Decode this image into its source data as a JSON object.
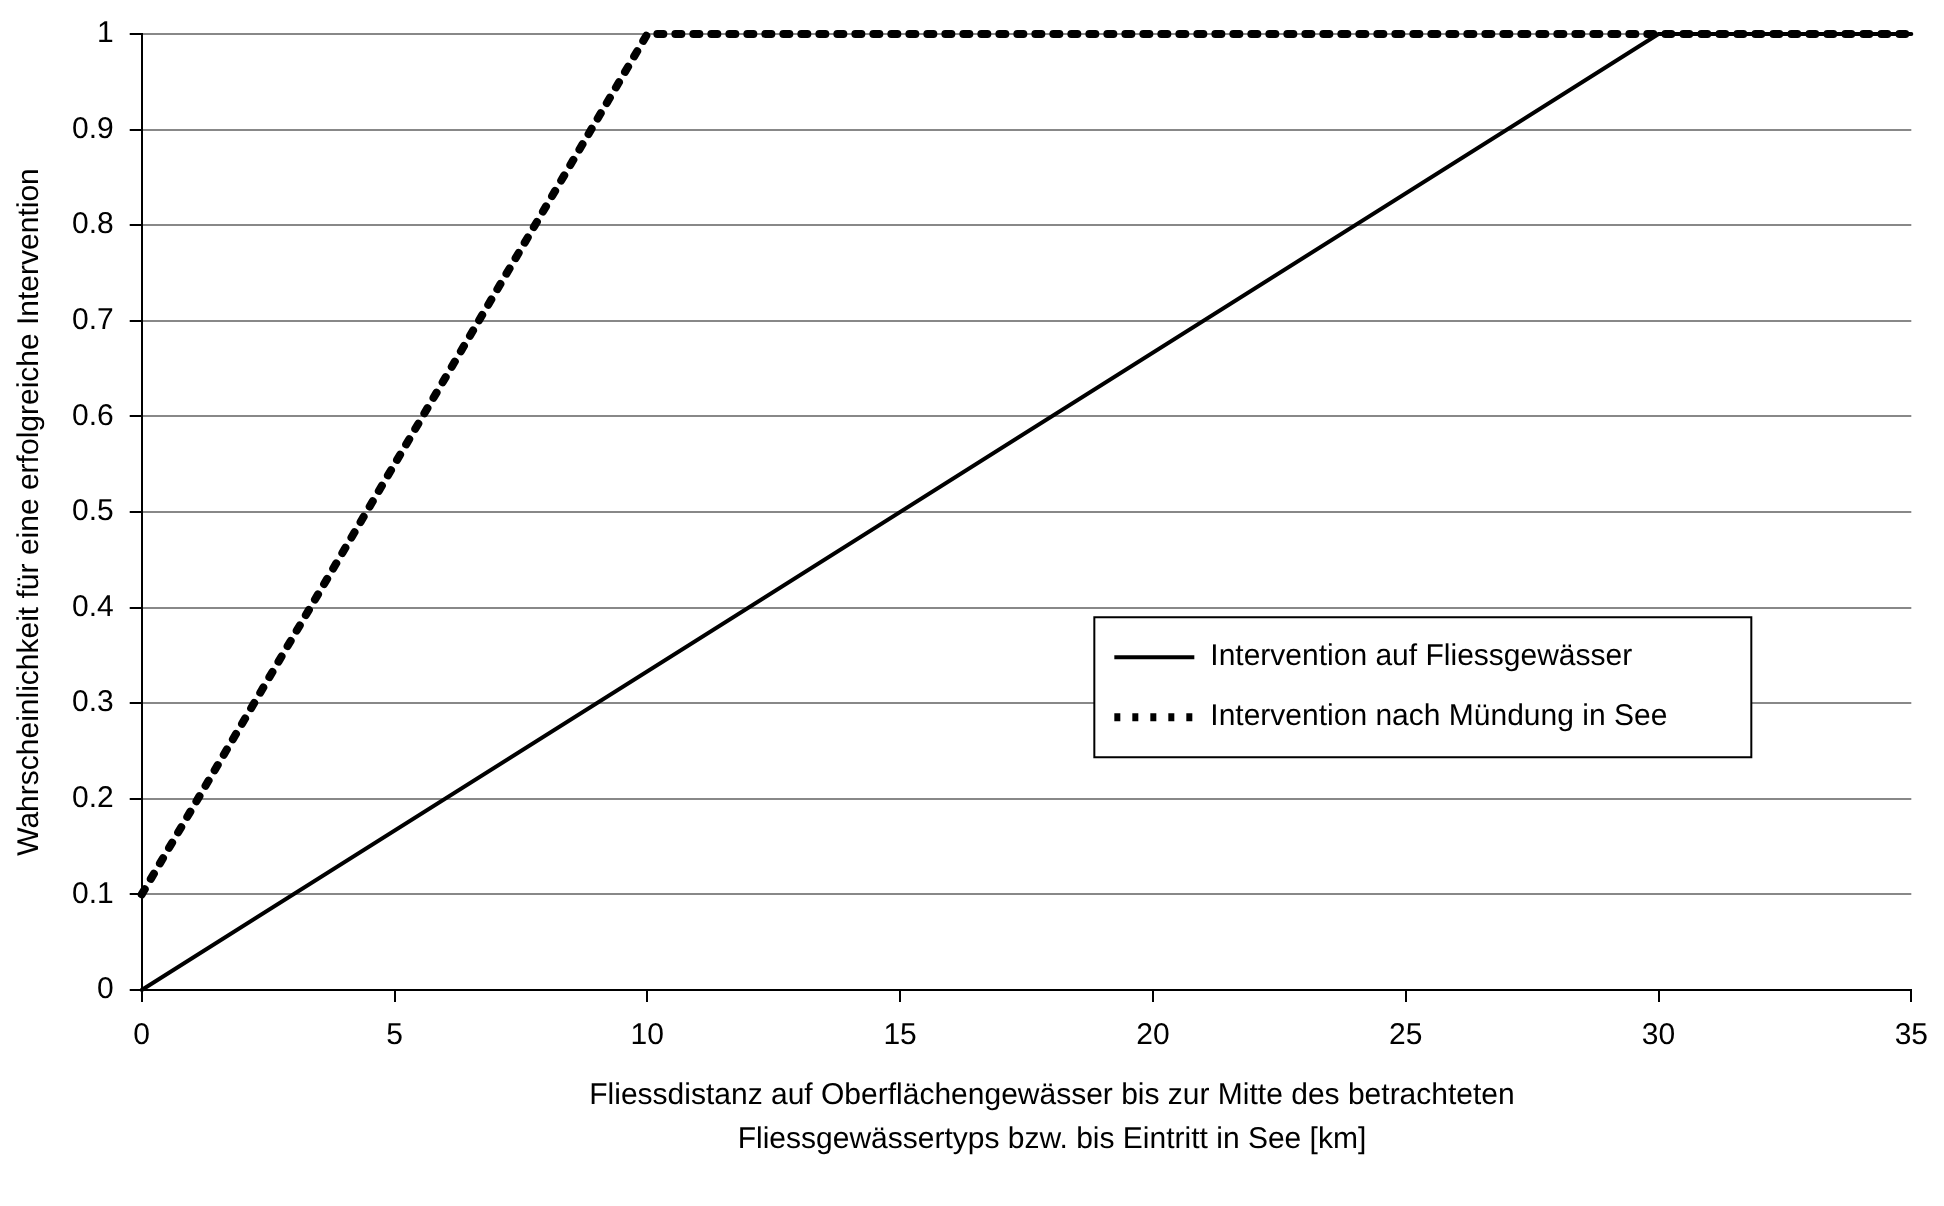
{
  "chart_data": {
    "type": "line",
    "xlabel": "Fliessdistanz auf Oberflächengewässer bis zur Mitte des betrachteten Fliessgewässertyps bzw. bis Eintritt in See [km]",
    "ylabel": "Wahrscheinlichkeit für eine erfolgreiche Intervention",
    "xlim": [
      0,
      35
    ],
    "xticks": [
      0,
      5,
      10,
      15,
      20,
      25,
      30,
      35
    ],
    "ylim": [
      0,
      1
    ],
    "yticks": [
      0,
      0.1,
      0.2,
      0.3,
      0.4,
      0.5,
      0.6,
      0.7,
      0.8,
      0.9,
      1
    ],
    "grid": "y",
    "legend": "center right",
    "marker": "none",
    "series": [
      {
        "name": "Intervention auf Fliessgewässer",
        "color": "#000000",
        "line_style": "solid",
        "x": [
          0,
          30,
          35
        ],
        "values": [
          0,
          1,
          1
        ]
      },
      {
        "name": "Intervention nach Mündung in See",
        "color": "#000000",
        "line_style": "dashed",
        "x": [
          0,
          10,
          35
        ],
        "values": [
          0.1,
          1,
          1
        ]
      }
    ]
  }
}
